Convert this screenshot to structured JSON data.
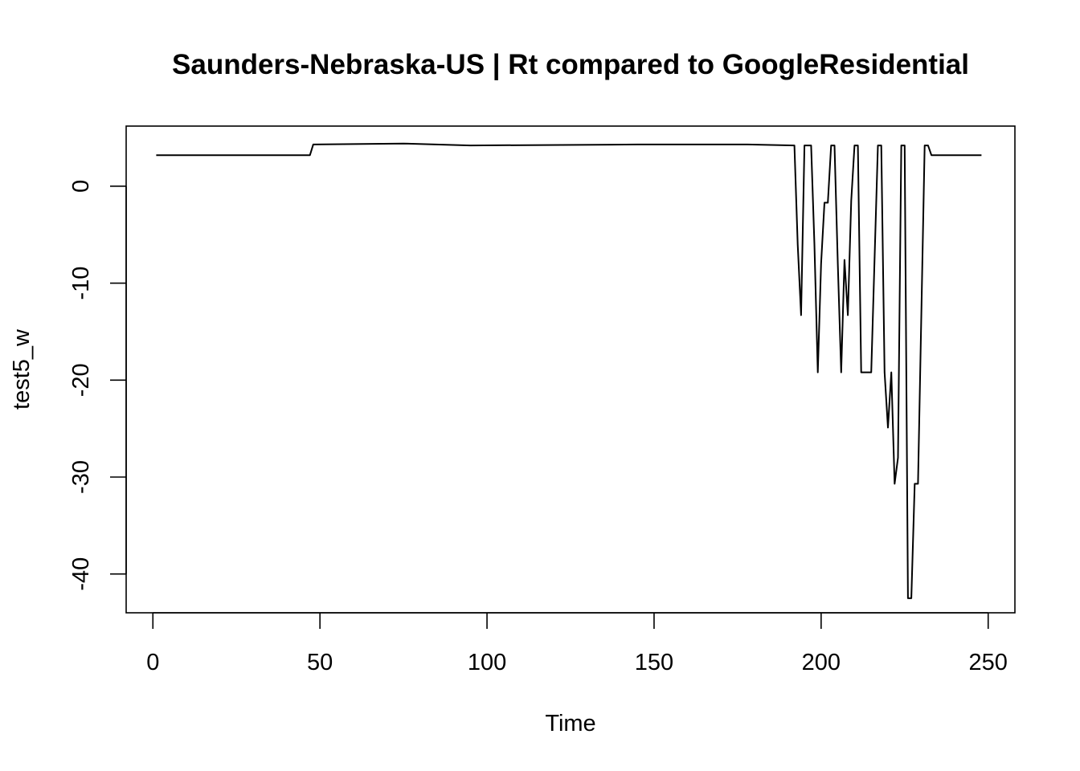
{
  "chart_data": {
    "type": "line",
    "title": "Saunders-Nebraska-US | Rt compared to GoogleResidential",
    "xlabel": "Time",
    "ylabel": "test5_w",
    "xlim": [
      -8,
      258
    ],
    "ylim": [
      -44,
      6.2
    ],
    "x_ticks": [
      0,
      50,
      100,
      150,
      200,
      250
    ],
    "y_ticks": [
      0,
      -10,
      -20,
      -30,
      -40
    ],
    "grid": false,
    "line_color": "#000000",
    "points": [
      [
        1,
        3.2
      ],
      [
        47,
        3.2
      ],
      [
        48,
        4.3
      ],
      [
        75,
        4.4
      ],
      [
        95,
        4.2
      ],
      [
        145,
        4.3
      ],
      [
        178,
        4.3
      ],
      [
        192,
        4.2
      ],
      [
        193,
        -6
      ],
      [
        194,
        -13.3
      ],
      [
        195,
        4.2
      ],
      [
        197,
        4.2
      ],
      [
        198,
        -6
      ],
      [
        199,
        -19.2
      ],
      [
        200,
        -8
      ],
      [
        201,
        -1.7
      ],
      [
        202,
        -1.7
      ],
      [
        203,
        4.2
      ],
      [
        204,
        4.2
      ],
      [
        205,
        -8
      ],
      [
        206,
        -19.2
      ],
      [
        207,
        -7.6
      ],
      [
        208,
        -13.3
      ],
      [
        209,
        -1.5
      ],
      [
        210,
        4.2
      ],
      [
        211,
        4.2
      ],
      [
        212,
        -19.2
      ],
      [
        215,
        -19.2
      ],
      [
        217,
        4.2
      ],
      [
        218,
        4.2
      ],
      [
        219,
        -19.2
      ],
      [
        220,
        -24.9
      ],
      [
        221,
        -19.2
      ],
      [
        222,
        -30.7
      ],
      [
        223,
        -28
      ],
      [
        224,
        4.2
      ],
      [
        225,
        4.2
      ],
      [
        226,
        -42.5
      ],
      [
        227,
        -42.5
      ],
      [
        228,
        -30.7
      ],
      [
        229,
        -30.7
      ],
      [
        231,
        4.2
      ],
      [
        232,
        4.2
      ],
      [
        233,
        3.2
      ],
      [
        248,
        3.2
      ]
    ]
  }
}
